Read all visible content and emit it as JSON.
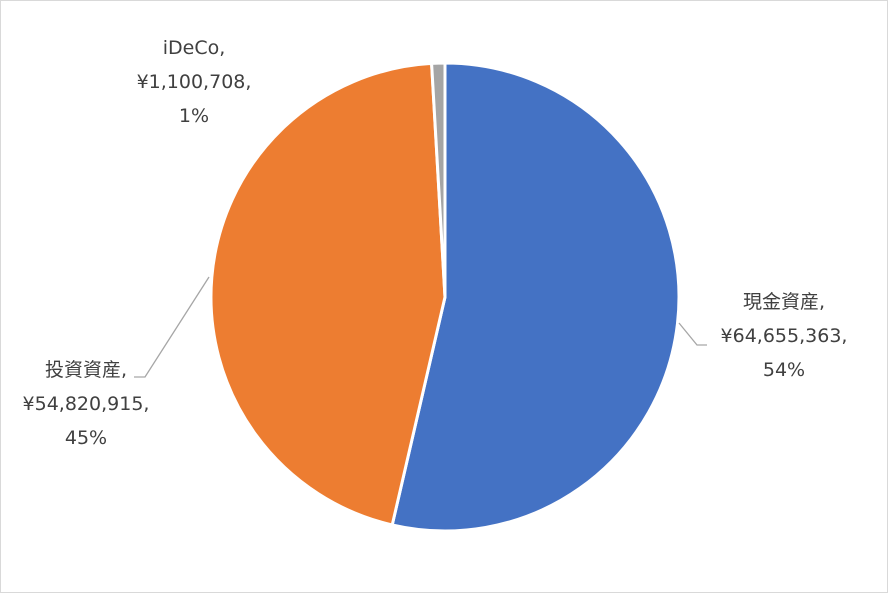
{
  "chart_data": {
    "type": "pie",
    "slices": [
      {
        "label": "現金資産",
        "value_text": "¥64,655,363,",
        "percent_text": "54%",
        "value": 64655363,
        "color": "#4472c4"
      },
      {
        "label": "投資資産",
        "value_text": "¥54,820,915,",
        "percent_text": "45%",
        "value": 54820915,
        "color": "#ed7d31"
      },
      {
        "label": "iDeCo",
        "value_text": "¥1,100,708,",
        "percent_text": "1%",
        "value": 1100708,
        "color": "#a5a5a5"
      }
    ],
    "label_suffix": ",",
    "start_angle": "12 o'clock",
    "direction": "clockwise",
    "leader_line_color": "#a6a6a6"
  }
}
